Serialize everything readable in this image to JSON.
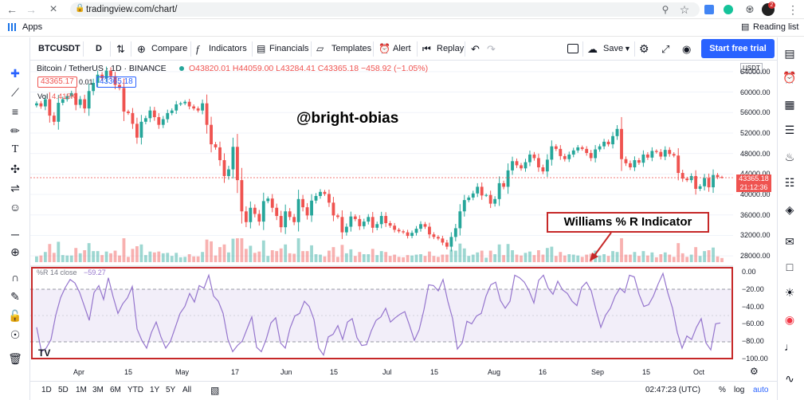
{
  "browser": {
    "url": "tradingview.com/chart/",
    "bookmarks_apps": "Apps",
    "reading_list": "Reading list",
    "ext_badge": "2"
  },
  "header": {
    "symbol": "BTCUSDT",
    "interval": "D",
    "compare": "Compare",
    "indicators": "Indicators",
    "financials": "Financials",
    "templates": "Templates",
    "alert": "Alert",
    "replay": "Replay",
    "save": "Save",
    "start_trial": "Start free trial"
  },
  "legend": {
    "title": "Bitcoin / TetherUS · 1D · BINANCE",
    "ohlc": "O43820.01 H44059.00 L43284.41 C43365.18 −458.92 (−1.05%)",
    "bid": "43365.17",
    "spread": "0.01",
    "ask": "43365.18",
    "vol_label": "Vol",
    "vol_value": "4.415K",
    "wr_label": "%R 14 close",
    "wr_value": "−59.27"
  },
  "annotations": {
    "watermark": "@bright-obias",
    "indicator_callout": "Williams % R Indicator"
  },
  "price_axis": {
    "currency": "USDT",
    "ticks": [
      "64000.00",
      "60000.00",
      "56000.00",
      "52000.00",
      "48000.00",
      "44000.00",
      "40000.00",
      "36000.00",
      "32000.00",
      "28000.00"
    ],
    "last_price": "43365.18",
    "countdown": "21:12:36"
  },
  "wr_axis": {
    "ticks": [
      "0.00",
      "−20.00",
      "−40.00",
      "−60.00",
      "−80.00",
      "−100.00"
    ]
  },
  "time_axis": {
    "ticks": [
      "Apr",
      "15",
      "May",
      "17",
      "Jun",
      "15",
      "Jul",
      "15",
      "Aug",
      "16",
      "Sep",
      "15",
      "Oct"
    ]
  },
  "bottom": {
    "ranges": [
      "1D",
      "5D",
      "1M",
      "3M",
      "6M",
      "YTD",
      "1Y",
      "5Y",
      "All"
    ],
    "clock": "02:47:23 (UTC)",
    "percent": "%",
    "log": "log",
    "auto": "auto"
  },
  "colors": {
    "up": "#26a69a",
    "down": "#ef5350",
    "wr_line": "#9575cd",
    "wr_band": "#ede7f6",
    "accent": "#2962ff",
    "callout": "#c62828"
  },
  "chart_data": [
    {
      "type": "candlestick",
      "symbol": "BTCUSDT",
      "interval": "1D",
      "ylim": [
        26000,
        66000
      ],
      "closes": [
        57800,
        57200,
        58600,
        55400,
        54200,
        57900,
        58600,
        59200,
        59800,
        57500,
        58600,
        56800,
        60200,
        61800,
        63400,
        62700,
        64200,
        63100,
        61400,
        60800,
        56200,
        55900,
        53800,
        51100,
        54200,
        54900,
        56400,
        55100,
        53600,
        54700,
        55900,
        56400,
        57600,
        57800,
        58100,
        57200,
        56800,
        56400,
        57800,
        53600,
        49800,
        49200,
        46700,
        43600,
        44900,
        49300,
        42800,
        36700,
        34600,
        37400,
        36200,
        34700,
        38700,
        39200,
        37400,
        35800,
        33600,
        36700,
        35600,
        34600,
        39100,
        37500,
        35900,
        38800,
        39700,
        40500,
        40100,
        38400,
        35900,
        35600,
        32600,
        33700,
        35700,
        35200,
        33800,
        34700,
        35600,
        33500,
        34200,
        35800,
        34400,
        33900,
        33100,
        32800,
        32600,
        31900,
        32500,
        33300,
        34200,
        33700,
        32200,
        31700,
        31400,
        30600,
        29800,
        31700,
        33400,
        36700,
        38900,
        39400,
        40200,
        41500,
        39800,
        39900,
        38200,
        39100,
        42200,
        41500,
        44700,
        46500,
        45700,
        45100,
        46300,
        47800,
        47100,
        45300,
        44500,
        46800,
        49400,
        48900,
        47500,
        46900,
        47800,
        48600,
        49200,
        48900,
        48100,
        47100,
        48800,
        49400,
        50300,
        49800,
        51400,
        52800,
        46900,
        46100,
        45300,
        46700,
        46200,
        47800,
        47200,
        48500,
        48300,
        47400,
        48700,
        47900,
        47600,
        44200,
        43100,
        42800,
        43600,
        41100,
        41600,
        43200,
        41400,
        43800,
        43400,
        43365
      ]
    },
    {
      "type": "line",
      "name": "%R 14 close",
      "ylim": [
        -100,
        0
      ],
      "values": [
        -64,
        -92,
        -88,
        -78,
        -50,
        -30,
        -18,
        -9,
        -13,
        -24,
        -40,
        -56,
        -24,
        -16,
        -32,
        -7,
        -29,
        -48,
        -37,
        -30,
        -17,
        -66,
        -79,
        -88,
        -70,
        -58,
        -75,
        -88,
        -80,
        -64,
        -48,
        -40,
        -25,
        -35,
        -16,
        -19,
        -4,
        -28,
        -34,
        -48,
        -78,
        -92,
        -85,
        -80,
        -66,
        -52,
        -87,
        -92,
        -78,
        -59,
        -53,
        -82,
        -88,
        -65,
        -51,
        -48,
        -34,
        -40,
        -55,
        -88,
        -96,
        -75,
        -72,
        -62,
        -78,
        -58,
        -54,
        -76,
        -85,
        -84,
        -68,
        -56,
        -52,
        -42,
        -58,
        -53,
        -49,
        -46,
        -62,
        -79,
        -67,
        -44,
        -15,
        -16,
        -22,
        -9,
        -34,
        -54,
        -89,
        -82,
        -57,
        -60,
        -51,
        -48,
        -28,
        -15,
        -12,
        -33,
        -42,
        -34,
        -4,
        -7,
        -12,
        -22,
        -36,
        -10,
        -4,
        -19,
        -26,
        -11,
        -21,
        -25,
        -34,
        -39,
        -18,
        -12,
        -22,
        -44,
        -64,
        -50,
        -42,
        -28,
        -19,
        -24,
        -4,
        -6,
        -26,
        -40,
        -38,
        -28,
        -14,
        -2,
        -24,
        -42,
        -70,
        -88,
        -74,
        -78,
        -64,
        -54,
        -82,
        -90,
        -60,
        -59
      ]
    }
  ]
}
